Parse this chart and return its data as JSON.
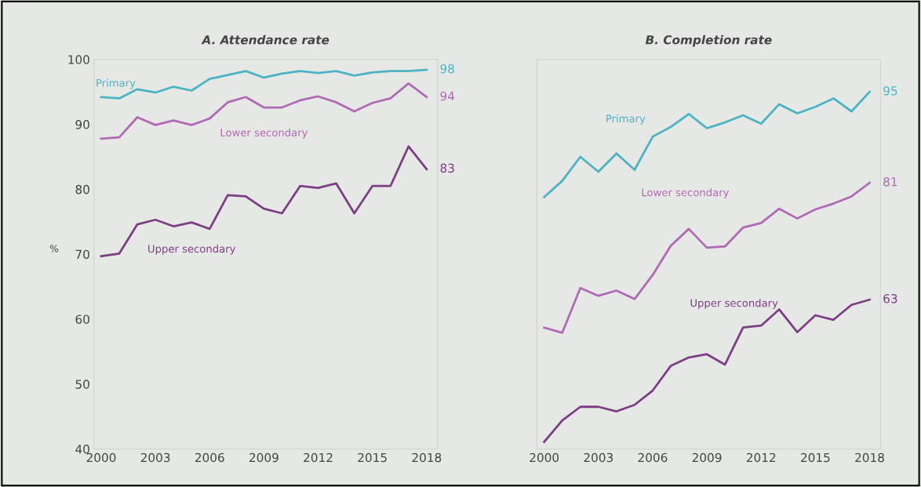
{
  "chart_data": [
    {
      "type": "line",
      "title": "A. Attendance rate",
      "ylabel": "%",
      "x": [
        2000,
        2001,
        2002,
        2003,
        2004,
        2005,
        2006,
        2007,
        2008,
        2009,
        2010,
        2011,
        2012,
        2013,
        2014,
        2015,
        2016,
        2017,
        2018
      ],
      "xlim": [
        1999.6,
        2018.6
      ],
      "xticks": [
        2000,
        2003,
        2006,
        2009,
        2012,
        2015,
        2018
      ],
      "ylim": [
        40,
        100
      ],
      "yticks": [
        40,
        50,
        60,
        70,
        80,
        90,
        100
      ],
      "grid": false,
      "legend": false,
      "series": [
        {
          "name": "Primary",
          "color": "#4bb3c4",
          "values": [
            94.2,
            94.0,
            95.4,
            94.9,
            95.8,
            95.2,
            97.0,
            97.6,
            98.2,
            97.2,
            97.8,
            98.2,
            97.9,
            98.2,
            97.5,
            98.0,
            98.2,
            98.2,
            98.4
          ],
          "value_labels": [
            null,
            null,
            null,
            null,
            null,
            null,
            null,
            null,
            null,
            null,
            null,
            null,
            null,
            null,
            null,
            null,
            null,
            null,
            "98"
          ]
        },
        {
          "name": "Lower secondary",
          "color": "#b06ab3",
          "values": [
            87.8,
            88.0,
            91.1,
            89.9,
            90.6,
            89.9,
            90.9,
            93.4,
            94.2,
            92.6,
            92.6,
            93.7,
            94.3,
            93.4,
            92.0,
            93.3,
            94.0,
            96.3,
            94.2
          ],
          "value_labels": [
            null,
            null,
            null,
            null,
            null,
            null,
            null,
            null,
            null,
            null,
            null,
            null,
            null,
            null,
            null,
            null,
            null,
            null,
            "94"
          ]
        },
        {
          "name": "Upper secondary",
          "color": "#7d3f84",
          "values": [
            69.7,
            70.1,
            74.6,
            75.3,
            74.3,
            74.9,
            73.9,
            79.1,
            78.9,
            77.0,
            76.3,
            80.5,
            80.2,
            80.9,
            76.3,
            80.5,
            80.5,
            86.6,
            83.1
          ],
          "value_labels": [
            null,
            null,
            null,
            null,
            null,
            null,
            null,
            null,
            null,
            null,
            null,
            null,
            null,
            null,
            null,
            null,
            null,
            null,
            "83"
          ]
        }
      ]
    },
    {
      "type": "line",
      "title": "B. Completion rate",
      "x": [
        2000,
        2001,
        2002,
        2003,
        2004,
        2005,
        2006,
        2007,
        2008,
        2009,
        2010,
        2011,
        2012,
        2013,
        2014,
        2015,
        2016,
        2017,
        2018
      ],
      "xlim": [
        1999.6,
        2018.6
      ],
      "xticks": [
        2000,
        2003,
        2006,
        2009,
        2012,
        2015,
        2018
      ],
      "ylim": [
        40,
        100
      ],
      "tick_labels": "x",
      "grid": false,
      "legend": false,
      "series": [
        {
          "name": "Primary",
          "color": "#4bb3c4",
          "values": [
            78.8,
            81.3,
            85.0,
            82.7,
            85.5,
            83.0,
            88.1,
            89.6,
            91.6,
            89.4,
            90.3,
            91.4,
            90.1,
            93.1,
            91.7,
            92.7,
            94.0,
            92.0,
            95.0
          ],
          "value_labels": [
            null,
            null,
            null,
            null,
            null,
            null,
            null,
            null,
            null,
            null,
            null,
            null,
            null,
            null,
            null,
            null,
            null,
            null,
            "95"
          ]
        },
        {
          "name": "Lower secondary",
          "color": "#b06ab3",
          "values": [
            58.7,
            57.9,
            64.8,
            63.6,
            64.4,
            63.1,
            66.8,
            71.3,
            73.9,
            71.0,
            71.2,
            74.1,
            74.8,
            77.0,
            75.5,
            76.9,
            77.8,
            78.9,
            81.0
          ],
          "value_labels": [
            null,
            null,
            null,
            null,
            null,
            null,
            null,
            null,
            null,
            null,
            null,
            null,
            null,
            null,
            null,
            null,
            null,
            null,
            "81"
          ]
        },
        {
          "name": "Upper secondary",
          "color": "#7d3f84",
          "values": [
            41.1,
            44.4,
            46.5,
            46.5,
            45.8,
            46.8,
            49.0,
            52.8,
            54.1,
            54.6,
            53.0,
            58.7,
            59.0,
            61.5,
            58.0,
            60.6,
            59.9,
            62.2,
            63.0
          ],
          "value_labels": [
            null,
            null,
            null,
            null,
            null,
            null,
            null,
            null,
            null,
            null,
            null,
            null,
            null,
            null,
            null,
            null,
            null,
            null,
            "63"
          ]
        }
      ]
    }
  ]
}
